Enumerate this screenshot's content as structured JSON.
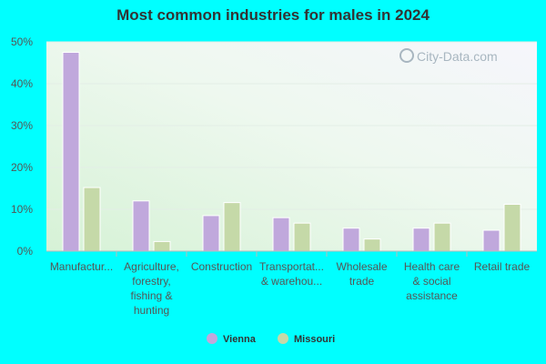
{
  "chart_data": {
    "type": "bar",
    "title": "Most common industries for males in 2024",
    "categories": [
      [
        "Manufactur..."
      ],
      [
        "Agriculture,",
        "forestry,",
        "fishing &",
        "hunting"
      ],
      [
        "Construction"
      ],
      [
        "Transportat...",
        "& warehou..."
      ],
      [
        "Wholesale",
        "trade"
      ],
      [
        "Health care",
        "& social",
        "assistance"
      ],
      [
        "Retail trade"
      ]
    ],
    "series": [
      {
        "name": "Vienna",
        "color": "#c0a8dc",
        "values": [
          47.5,
          12,
          8.5,
          8,
          5.5,
          5.5,
          5
        ]
      },
      {
        "name": "Missouri",
        "color": "#c5d9a8",
        "values": [
          15.2,
          2.3,
          11.6,
          6.7,
          2.9,
          6.7,
          11.2
        ]
      }
    ],
    "ylim": [
      0,
      50
    ],
    "yticks": [
      "0%",
      "10%",
      "20%",
      "30%",
      "40%",
      "50%"
    ],
    "ytick_values": [
      0,
      10,
      20,
      30,
      40,
      50
    ],
    "grid": true,
    "legend": "bottom-center"
  },
  "watermark": "City-Data.com"
}
